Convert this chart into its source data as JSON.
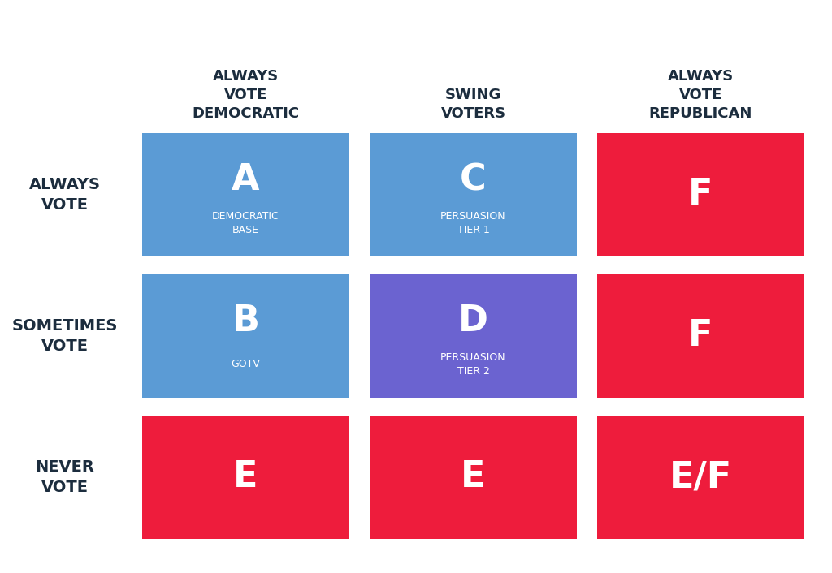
{
  "background_color": "#ffffff",
  "col_headers": [
    "ALWAYS\nVOTE\nDEMOCRATIC",
    "SWING\nVOTERS",
    "ALWAYS\nVOTE\nREPUBLICAN"
  ],
  "row_headers": [
    "ALWAYS\nVOTE",
    "SOMETIMES\nVOTE",
    "NEVER\nVOTE"
  ],
  "cells": [
    [
      {
        "grade": "A",
        "subtitle": "DEMOCRATIC\nBASE",
        "color": "#5B9BD5"
      },
      {
        "grade": "C",
        "subtitle": "PERSUASION\nTIER 1",
        "color": "#5B9BD5"
      },
      {
        "grade": "F",
        "subtitle": "",
        "color": "#EE1C3C"
      }
    ],
    [
      {
        "grade": "B",
        "subtitle": "GOTV",
        "color": "#5B9BD5"
      },
      {
        "grade": "D",
        "subtitle": "PERSUASION\nTIER 2",
        "color": "#6B63D0"
      },
      {
        "grade": "F",
        "subtitle": "",
        "color": "#EE1C3C"
      }
    ],
    [
      {
        "grade": "E",
        "subtitle": "",
        "color": "#EE1C3C"
      },
      {
        "grade": "E",
        "subtitle": "",
        "color": "#EE1C3C"
      },
      {
        "grade": "E/F",
        "subtitle": "",
        "color": "#EE1C3C"
      }
    ]
  ],
  "col_header_text_color": "#1C2D3E",
  "row_header_text_color": "#1C2D3E",
  "cell_text_color": "#ffffff",
  "grade_fontsize": 32,
  "subtitle_fontsize": 9,
  "header_fontsize": 13,
  "row_header_fontsize": 14
}
